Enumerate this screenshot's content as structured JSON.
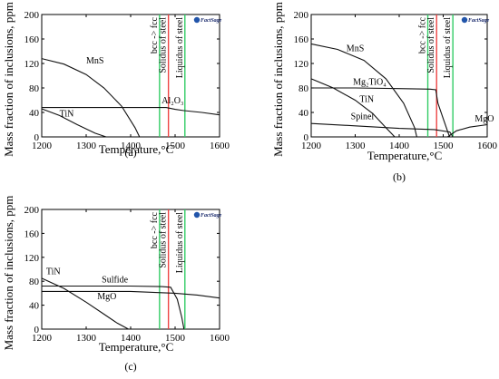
{
  "chart_data": [
    {
      "type": "line",
      "panel_label": "(a)",
      "xlabel": "Temperature,°C",
      "ylabel": "Mass fraction of inclusions, ppm",
      "xlim": [
        1200,
        1600
      ],
      "ylim": [
        0,
        200
      ],
      "xticks": [
        1200,
        1300,
        1400,
        1500,
        1600
      ],
      "yticks": [
        0,
        40,
        80,
        120,
        160,
        200
      ],
      "logo": "FactSage",
      "vlines": [
        {
          "label": "bcc -> fcc",
          "x": 1465,
          "color": "#33cc66"
        },
        {
          "label": "Solidus of steel",
          "x": 1485,
          "color": "#ee4444"
        },
        {
          "label": "Liquidus of steel",
          "x": 1522,
          "color": "#33cc66"
        }
      ],
      "series": [
        {
          "name": "MnS",
          "x": [
            1200,
            1250,
            1300,
            1340,
            1380,
            1410,
            1420
          ],
          "y": [
            128,
            119,
            102,
            80,
            50,
            15,
            0
          ],
          "label_at": [
            1300,
            120
          ]
        },
        {
          "name": "Al₂O₃",
          "x": [
            1200,
            1300,
            1400,
            1480,
            1500,
            1520,
            1560,
            1600
          ],
          "y": [
            48,
            48,
            48,
            48,
            45,
            43,
            40,
            36
          ],
          "label_at": [
            1470,
            55
          ]
        },
        {
          "name": "TiN",
          "x": [
            1200,
            1240,
            1280,
            1320,
            1345
          ],
          "y": [
            46,
            35,
            20,
            6,
            0
          ],
          "label_at": [
            1240,
            33
          ]
        }
      ]
    },
    {
      "type": "line",
      "panel_label": "(b)",
      "xlabel": "Temperature,°C",
      "ylabel": "Mass fraction of inclusions, ppm",
      "xlim": [
        1200,
        1600
      ],
      "ylim": [
        0,
        200
      ],
      "xticks": [
        1200,
        1300,
        1400,
        1500,
        1600
      ],
      "yticks": [
        0,
        40,
        80,
        120,
        160,
        200
      ],
      "logo": "FactSage",
      "vlines": [
        {
          "label": "bcc -> fcc",
          "x": 1465,
          "color": "#33cc66"
        },
        {
          "label": "Solidus of steel",
          "x": 1485,
          "color": "#ee4444"
        },
        {
          "label": "Liquidus of steel",
          "x": 1522,
          "color": "#33cc66"
        }
      ],
      "series": [
        {
          "name": "MnS",
          "x": [
            1200,
            1260,
            1320,
            1370,
            1410,
            1435,
            1440
          ],
          "y": [
            152,
            143,
            125,
            95,
            55,
            15,
            0
          ],
          "label_at": [
            1280,
            140
          ]
        },
        {
          "name": "Mg₂TiO₄",
          "x": [
            1200,
            1250,
            1300,
            1340,
            1370,
            1390
          ],
          "y": [
            95,
            80,
            60,
            38,
            15,
            0
          ],
          "label_at": [
            1295,
            85
          ]
        },
        {
          "name": "TiN",
          "x": [
            1200,
            1300,
            1400,
            1470,
            1483,
            1488,
            1500,
            1512,
            1515
          ],
          "y": [
            80,
            80,
            79,
            78,
            77,
            55,
            30,
            5,
            0
          ],
          "label_at": [
            1310,
            57
          ]
        },
        {
          "name": "Spinel",
          "x": [
            1200,
            1300,
            1400,
            1480,
            1515,
            1522
          ],
          "y": [
            22,
            18,
            14,
            12,
            8,
            0
          ],
          "label_at": [
            1290,
            29
          ]
        },
        {
          "name": "MgO",
          "x": [
            1510,
            1530,
            1560,
            1600
          ],
          "y": [
            0,
            10,
            16,
            20
          ],
          "label_at": [
            1572,
            25
          ]
        }
      ]
    },
    {
      "type": "line",
      "panel_label": "(c)",
      "xlabel": "Temperature,°C",
      "ylabel": "Mass fraction of inclusions, ppm",
      "xlim": [
        1200,
        1600
      ],
      "ylim": [
        0,
        200
      ],
      "xticks": [
        1200,
        1300,
        1400,
        1500,
        1600
      ],
      "yticks": [
        0,
        40,
        80,
        120,
        160,
        200
      ],
      "logo": "FactSage",
      "vlines": [
        {
          "label": "bcc -> fcc",
          "x": 1465,
          "color": "#33cc66"
        },
        {
          "label": "Solidus of steel",
          "x": 1485,
          "color": "#ee4444"
        },
        {
          "label": "Liquidus of steel",
          "x": 1522,
          "color": "#33cc66"
        }
      ],
      "series": [
        {
          "name": "TiN",
          "x": [
            1200,
            1250,
            1300,
            1340,
            1370,
            1395
          ],
          "y": [
            85,
            68,
            45,
            25,
            10,
            0
          ],
          "label_at": [
            1210,
            92
          ]
        },
        {
          "name": "Sulfide",
          "x": [
            1200,
            1300,
            1400,
            1470,
            1490,
            1505,
            1515,
            1520
          ],
          "y": [
            72,
            72,
            72,
            71,
            70,
            50,
            20,
            0
          ],
          "label_at": [
            1335,
            78
          ]
        },
        {
          "name": "MgO",
          "x": [
            1200,
            1300,
            1400,
            1500,
            1550,
            1600
          ],
          "y": [
            63,
            63,
            63,
            60,
            57,
            52
          ],
          "label_at": [
            1325,
            50
          ]
        }
      ]
    }
  ]
}
